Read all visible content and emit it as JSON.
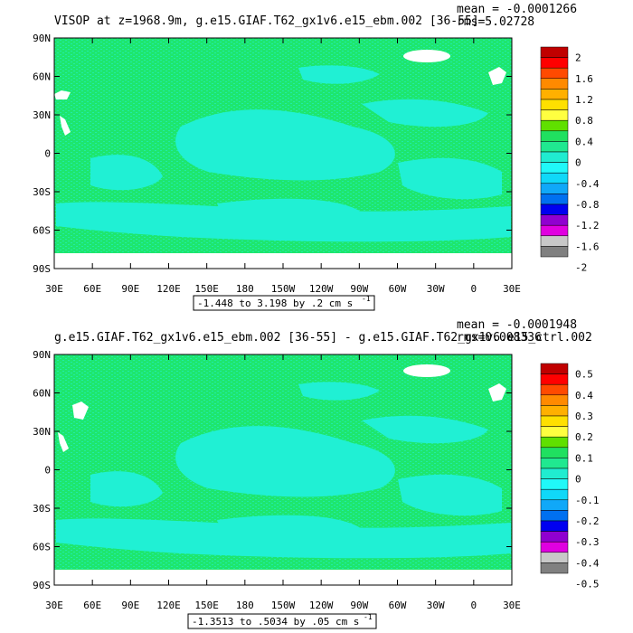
{
  "panels": [
    {
      "title": "VISOP at z=1968.9m, g.e15.GIAF.T62_gx1v6.e15_ebm.002 [36-55]",
      "mean_label": "mean = -0.0001266",
      "rms_label": "rms=5.02728",
      "range_label": "-1.448 to 3.198 by .2 cm s",
      "range_exponent": "-1",
      "colorbar": {
        "labels": [
          "2",
          "1.6",
          "1.2",
          "0.8",
          "0.4",
          "0",
          "-0.4",
          "-0.8",
          "-1.2",
          "-1.6",
          "-2"
        ],
        "colors": [
          "#c00000",
          "#ff0000",
          "#ff4a00",
          "#ff8a00",
          "#ffb000",
          "#ffe000",
          "#ffff40",
          "#60e000",
          "#20e060",
          "#20e890",
          "#20ecd0",
          "#20f8f8",
          "#10d8f8",
          "#10a8f8",
          "#0070f0",
          "#0000f0",
          "#9000d0",
          "#e000e0",
          "#c8c8c8",
          "#808080"
        ]
      }
    },
    {
      "title": "g.e15.GIAF.T62_gx1v6.e15_ebm.002 [36-55] - g.e15.GIAF.T62_gx1v6.e15_ctrl.002",
      "mean_label": "mean = -0.0001948",
      "rms_label": "rms=0.008336",
      "range_label": "-1.3513 to .5034 by .05 cm s",
      "range_exponent": "-1",
      "colorbar": {
        "labels": [
          "0.5",
          "0.4",
          "0.3",
          "0.2",
          "0.1",
          "0",
          "-0.1",
          "-0.2",
          "-0.3",
          "-0.4",
          "-0.5"
        ],
        "colors": [
          "#c00000",
          "#ff0000",
          "#ff4a00",
          "#ff8a00",
          "#ffb000",
          "#ffe000",
          "#ffff40",
          "#60e000",
          "#20e060",
          "#20e890",
          "#20ecd0",
          "#20f8f8",
          "#10d8f8",
          "#10a8f8",
          "#0070f0",
          "#0000f0",
          "#9000d0",
          "#e000e0",
          "#c8c8c8",
          "#808080"
        ]
      }
    }
  ],
  "axes": {
    "lat_labels": [
      "90N",
      "60N",
      "30N",
      "0",
      "30S",
      "60S",
      "90S"
    ],
    "lon_labels": [
      "30E",
      "60E",
      "90E",
      "120E",
      "150E",
      "180",
      "150W",
      "120W",
      "90W",
      "60W",
      "30W",
      "0",
      "30E"
    ]
  },
  "colors": {
    "ocean_base": "#1ee66e",
    "ocean_cyan": "#20f0d4",
    "land": "#ffffff",
    "frame": "#000000"
  }
}
